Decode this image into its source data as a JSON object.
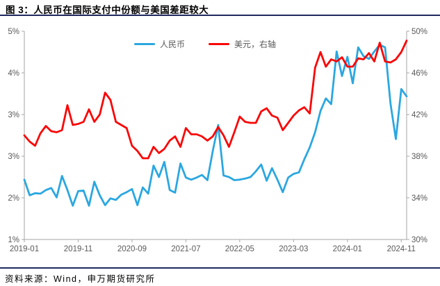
{
  "header": {
    "title": "图 3：人民币在国际支付中份额与美国差距较大"
  },
  "footer": {
    "source": "资料来源：Wind，申万期货研究所"
  },
  "colors": {
    "rmb_line": "#2aa7e0",
    "usd_line": "#fa0505",
    "divider": "#20295f",
    "axis_line": "#a6a6a6",
    "tick_text": "#595959"
  },
  "chart_data": {
    "type": "line",
    "title": "图 3：人民币在国际支付中份额与美国差距较大",
    "xlabel": "",
    "ylabel": "",
    "grid": false,
    "legend_position": "top-center",
    "x": [
      "2019-01",
      "2019-02",
      "2019-03",
      "2019-04",
      "2019-05",
      "2019-06",
      "2019-07",
      "2019-08",
      "2019-09",
      "2019-10",
      "2019-11",
      "2019-12",
      "2020-01",
      "2020-02",
      "2020-03",
      "2020-04",
      "2020-05",
      "2020-06",
      "2020-07",
      "2020-08",
      "2020-09",
      "2020-10",
      "2020-11",
      "2020-12",
      "2021-01",
      "2021-02",
      "2021-03",
      "2021-04",
      "2021-05",
      "2021-06",
      "2021-07",
      "2021-08",
      "2021-09",
      "2021-10",
      "2021-11",
      "2021-12",
      "2022-01",
      "2022-02",
      "2022-03",
      "2022-04",
      "2022-05",
      "2022-06",
      "2022-07",
      "2022-08",
      "2022-09",
      "2022-10",
      "2022-11",
      "2022-12",
      "2023-01",
      "2023-02",
      "2023-03",
      "2023-04",
      "2023-05",
      "2023-06",
      "2023-07",
      "2023-08",
      "2023-09",
      "2023-10",
      "2023-11",
      "2023-12",
      "2024-01",
      "2024-02",
      "2024-03",
      "2024-04",
      "2024-05",
      "2024-06",
      "2024-07",
      "2024-08",
      "2024-09",
      "2024-10",
      "2024-11",
      "2024-12"
    ],
    "x_tick_labels": [
      "2019-01",
      "2019-11",
      "2020-09",
      "2021-07",
      "2022-05",
      "2023-03",
      "2024-01",
      "2024-11"
    ],
    "left_axis": {
      "min": 1.0,
      "max": 5.0,
      "tick_values": [
        5.0,
        4.2,
        3.4,
        2.6,
        1.8,
        1.0
      ],
      "tick_labels": [
        "5%",
        "4%",
        "3%",
        "3%",
        "2%",
        "1%"
      ]
    },
    "right_axis": {
      "min": 30,
      "max": 50,
      "tick_values": [
        50,
        46,
        42,
        38,
        34,
        30
      ],
      "tick_labels": [
        "50%",
        "46%",
        "42%",
        "38%",
        "34%",
        "30%"
      ]
    },
    "series": [
      {
        "name": "人民币",
        "axis": "left",
        "color": "#2aa7e0",
        "values": [
          2.15,
          1.85,
          1.89,
          1.88,
          1.95,
          1.99,
          1.81,
          2.22,
          1.95,
          1.65,
          1.93,
          1.94,
          1.65,
          2.11,
          1.85,
          1.66,
          1.79,
          1.76,
          1.86,
          1.91,
          1.97,
          1.66,
          2.0,
          1.88,
          2.42,
          2.2,
          2.49,
          1.95,
          1.9,
          2.46,
          2.19,
          2.15,
          2.19,
          2.24,
          2.14,
          2.7,
          3.2,
          2.23,
          2.2,
          2.14,
          2.15,
          2.17,
          2.2,
          2.31,
          2.44,
          2.13,
          2.37,
          2.15,
          1.91,
          2.19,
          2.26,
          2.29,
          2.54,
          2.77,
          3.06,
          3.47,
          3.71,
          3.6,
          4.61,
          4.14,
          4.51,
          4.0,
          4.69,
          4.52,
          4.47,
          4.61,
          4.74,
          4.69,
          3.61,
          2.93,
          3.89,
          3.75
        ]
      },
      {
        "name": "美元，右轴",
        "axis": "right",
        "color": "#fa0505",
        "values": [
          40.0,
          39.4,
          39.0,
          40.2,
          40.9,
          40.4,
          40.3,
          40.5,
          42.9,
          41.0,
          41.1,
          41.3,
          42.5,
          41.3,
          42.0,
          44.1,
          43.4,
          41.3,
          41.0,
          40.7,
          39.0,
          38.5,
          37.8,
          37.8,
          38.9,
          38.3,
          38.7,
          39.5,
          39.9,
          38.9,
          40.7,
          40.1,
          40.1,
          39.9,
          39.5,
          39.9,
          40.8,
          40.0,
          38.9,
          40.3,
          41.8,
          41.3,
          41.2,
          41.2,
          42.3,
          42.6,
          41.9,
          41.7,
          40.5,
          41.2,
          41.9,
          42.4,
          42.7,
          42.1,
          46.5,
          48.0,
          46.6,
          47.3,
          47.1,
          47.5,
          46.6,
          46.6,
          47.4,
          47.3,
          47.9,
          47.1,
          48.9,
          47.1,
          47.0,
          47.3,
          48.0,
          49.1
        ]
      }
    ]
  }
}
